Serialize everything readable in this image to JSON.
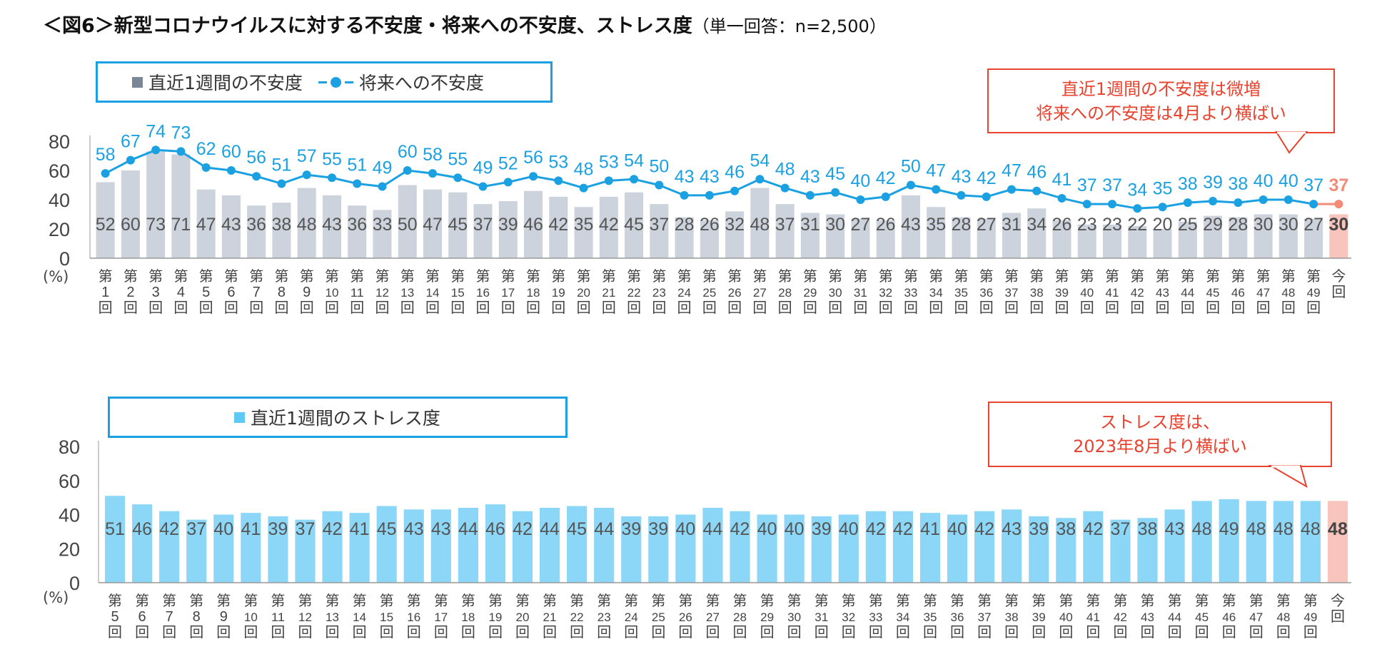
{
  "title": {
    "main": "＜図6＞新型コロナウイルスに対する不安度・将来への不安度、ストレス度",
    "sub": "（単一回答：n=2,500）"
  },
  "colors": {
    "bar_gray": "#cdd3dc",
    "line_blue": "#1ba1e2",
    "bar_blue": "#8cd7f7",
    "highlight": "#f8c4bc",
    "highlight_line": "#f28b78",
    "highlight_text": "#e8432f"
  },
  "chart_data": [
    {
      "type": "bar+line",
      "legend": {
        "bar": "直近1週間の不安度",
        "line": "将来への不安度"
      },
      "yticks": [
        "0",
        "20",
        "40",
        "60",
        "80"
      ],
      "ylim": [
        0,
        80
      ],
      "unit": "(%)",
      "callout": [
        "直近1週間の不安度は微増",
        "将来への不安度は4月より横ばい"
      ],
      "categories": [
        "第1回",
        "第2回",
        "第3回",
        "第4回",
        "第5回",
        "第6回",
        "第7回",
        "第8回",
        "第9回",
        "第10回",
        "第11回",
        "第12回",
        "第13回",
        "第14回",
        "第15回",
        "第16回",
        "第17回",
        "第18回",
        "第19回",
        "第20回",
        "第21回",
        "第22回",
        "第23回",
        "第24回",
        "第25回",
        "第26回",
        "第27回",
        "第28回",
        "第29回",
        "第30回",
        "第31回",
        "第32回",
        "第33回",
        "第34回",
        "第35回",
        "第36回",
        "第37回",
        "第38回",
        "第39回",
        "第40回",
        "第41回",
        "第42回",
        "第43回",
        "第44回",
        "第45回",
        "第46回",
        "第47回",
        "第48回",
        "第49回",
        "今回"
      ],
      "bar_values": [
        52,
        60,
        73,
        71,
        47,
        43,
        36,
        38,
        48,
        43,
        36,
        33,
        50,
        47,
        45,
        37,
        39,
        46,
        42,
        35,
        42,
        45,
        37,
        28,
        26,
        32,
        48,
        37,
        31,
        30,
        27,
        26,
        43,
        35,
        28,
        27,
        31,
        34,
        26,
        23,
        23,
        22,
        20,
        25,
        29,
        28,
        30,
        30,
        27,
        30
      ],
      "line_values": [
        58,
        67,
        74,
        73,
        62,
        60,
        56,
        51,
        57,
        55,
        51,
        49,
        60,
        58,
        55,
        49,
        52,
        56,
        53,
        48,
        53,
        54,
        50,
        43,
        43,
        46,
        54,
        48,
        43,
        45,
        40,
        42,
        50,
        47,
        43,
        42,
        47,
        46,
        41,
        37,
        37,
        34,
        35,
        38,
        39,
        38,
        40,
        40,
        37,
        37
      ]
    },
    {
      "type": "bar",
      "legend": {
        "bar": "直近1週間のストレス度"
      },
      "yticks": [
        "0",
        "20",
        "40",
        "60",
        "80"
      ],
      "ylim": [
        0,
        80
      ],
      "unit": "(%)",
      "callout": [
        "ストレス度は、",
        "2023年8月より横ばい"
      ],
      "categories": [
        "第5回",
        "第6回",
        "第7回",
        "第8回",
        "第9回",
        "第10回",
        "第11回",
        "第12回",
        "第13回",
        "第14回",
        "第15回",
        "第16回",
        "第17回",
        "第18回",
        "第19回",
        "第20回",
        "第21回",
        "第22回",
        "第23回",
        "第24回",
        "第25回",
        "第26回",
        "第27回",
        "第28回",
        "第29回",
        "第30回",
        "第31回",
        "第32回",
        "第33回",
        "第34回",
        "第35回",
        "第36回",
        "第37回",
        "第38回",
        "第39回",
        "第40回",
        "第41回",
        "第42回",
        "第43回",
        "第44回",
        "第45回",
        "第46回",
        "第47回",
        "第48回",
        "第49回",
        "今回"
      ],
      "bar_values": [
        51,
        46,
        42,
        37,
        40,
        41,
        39,
        37,
        42,
        41,
        45,
        43,
        43,
        44,
        46,
        42,
        44,
        45,
        44,
        39,
        39,
        40,
        44,
        42,
        40,
        40,
        39,
        40,
        42,
        42,
        41,
        40,
        42,
        43,
        39,
        38,
        42,
        37,
        38,
        43,
        48,
        49,
        48,
        48,
        48,
        48
      ]
    }
  ]
}
